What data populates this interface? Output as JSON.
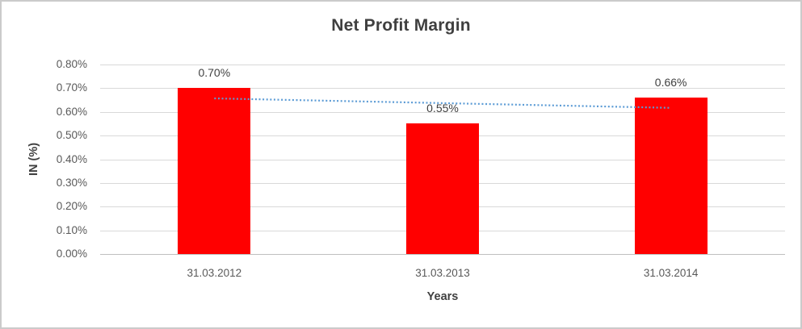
{
  "chart_data": {
    "type": "bar",
    "title": "Net Profit Margin",
    "xlabel": "Years",
    "ylabel": "IN (%)",
    "categories": [
      "31.03.2012",
      "31.03.2013",
      "31.03.2014"
    ],
    "values": [
      0.7,
      0.55,
      0.66
    ],
    "data_labels": [
      "0.70%",
      "0.55%",
      "0.66%"
    ],
    "y_ticks": [
      "0.80%",
      "0.70%",
      "0.60%",
      "0.50%",
      "0.40%",
      "0.30%",
      "0.20%",
      "0.10%",
      "0.00%"
    ],
    "ylim": [
      0,
      0.8
    ],
    "grid": true,
    "legend": false,
    "bar_color": "#ff0000",
    "trendline": {
      "type": "linear",
      "style": "dotted",
      "color": "#5b9bd5",
      "start_value": 0.657,
      "end_value": 0.617
    }
  },
  "colors": {
    "title_text": "#3f3f3f",
    "axis_text": "#595959",
    "label_text": "#404040",
    "gridline": "#d9d9d9",
    "axis_line": "#bfbfbf",
    "border": "#cbcbcb",
    "background": "#ffffff"
  }
}
